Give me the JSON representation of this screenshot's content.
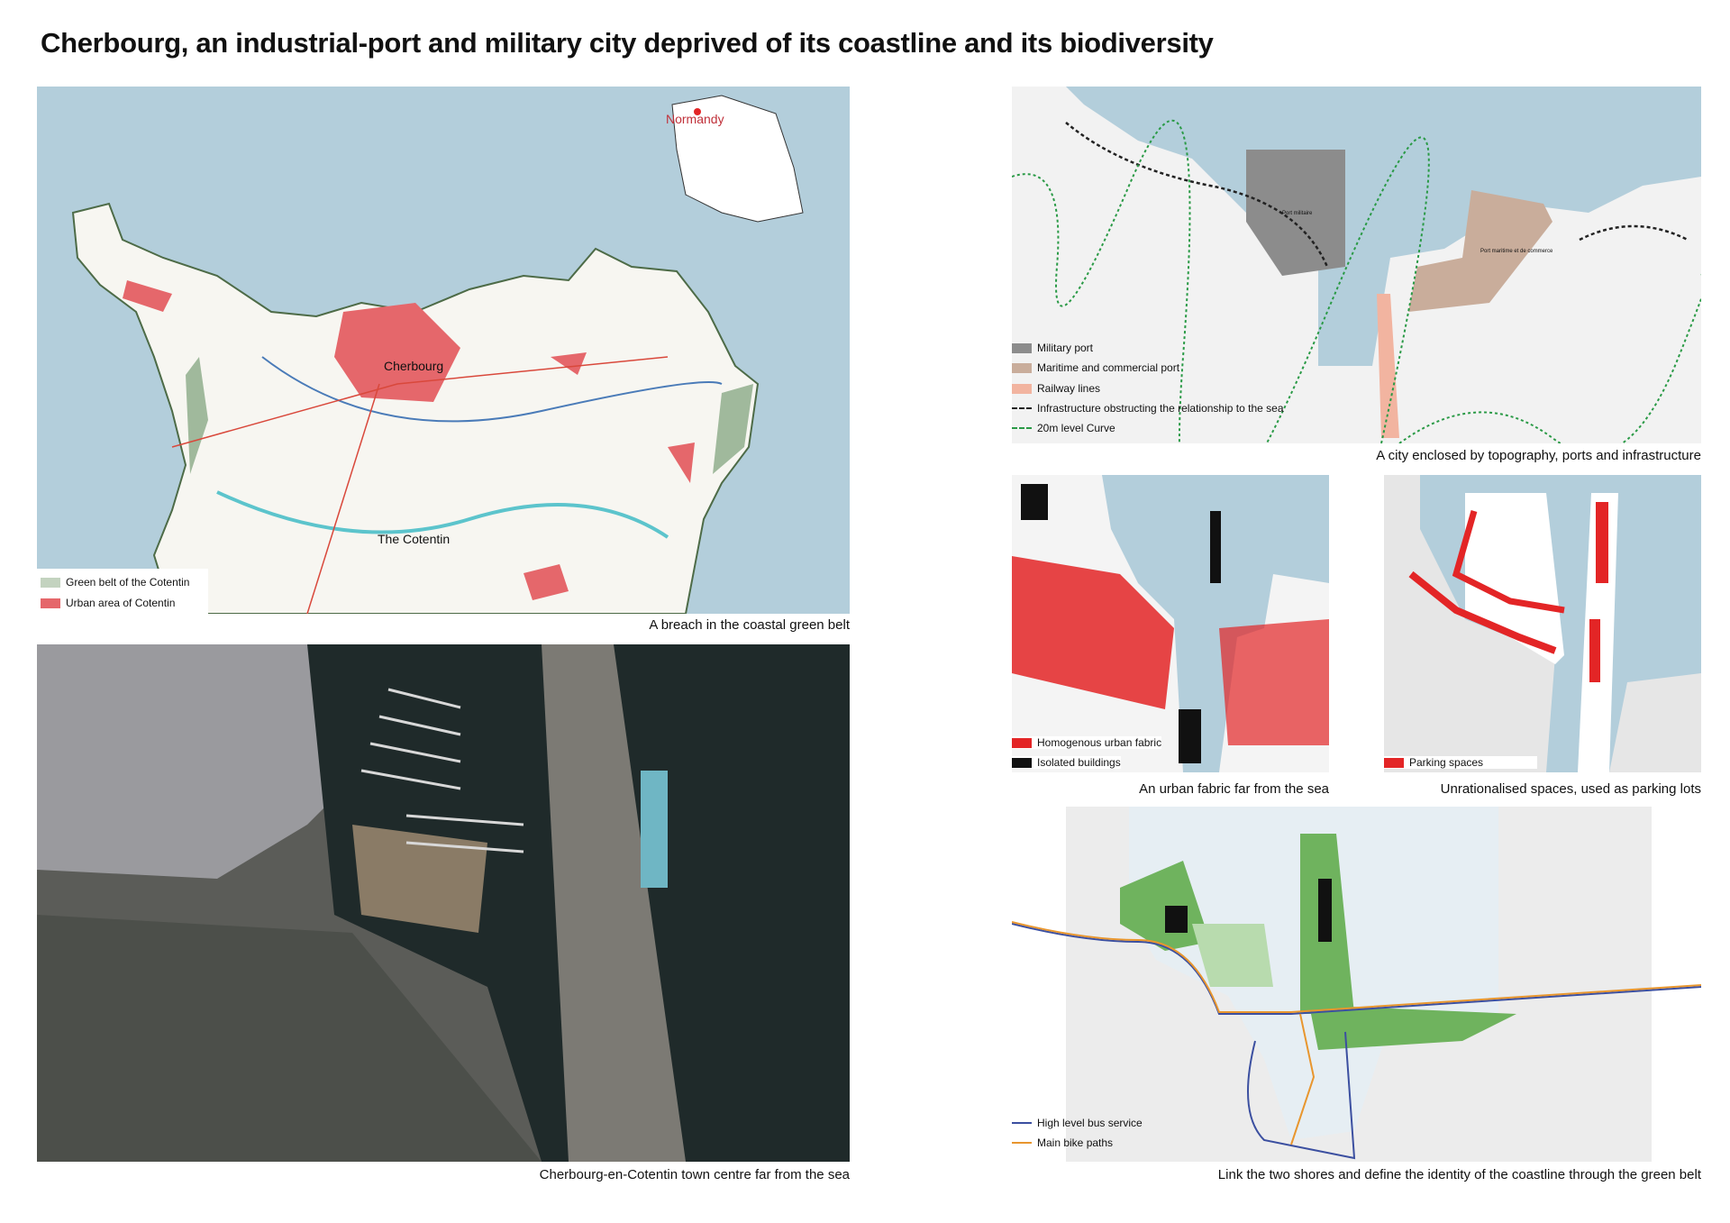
{
  "title": "Cherbourg, an industrial-port and military city deprived of its coastline and its biodiversity",
  "colors": {
    "sea": "#b3cedb",
    "green_belt": "#c3d3bf",
    "urban": "#e5676b",
    "military": "#8c8c8c",
    "maritime": "#c9ad9b",
    "railway": "#f2b4a0",
    "green": "#6fb35e",
    "bus": "#3b4fa0",
    "bike": "#e8962e",
    "red": "#e32526"
  },
  "panel1": {
    "caption": "A breach in the coastal green belt",
    "labels": {
      "normandy": "Normandy",
      "cherbourg": "Cherbourg",
      "cotentin": "The Cotentin"
    },
    "legend": [
      "Green belt of the Cotentin",
      "Urban area of Cotentin"
    ]
  },
  "panel2": {
    "caption": "Cherbourg-en-Cotentin town centre far from the sea"
  },
  "panel3": {
    "caption": "A city enclosed by topography, ports and infrastructure",
    "labels": {
      "military": "Port militaire",
      "maritime": "Port maritime et de commerce"
    },
    "legend": [
      "Military port",
      "Maritime and commercial port",
      "Railway lines",
      "Infrastructure obstructing the relationship to the sea",
      "20m level Curve"
    ]
  },
  "panel4": {
    "caption": "An urban fabric far from the sea",
    "legend": [
      "Homogenous urban fabric",
      "Isolated buildings"
    ]
  },
  "panel5": {
    "caption": "Unrationalised spaces, used as parking lots",
    "legend": [
      "Parking spaces"
    ]
  },
  "panel6": {
    "caption": "Link the two shores and define the identity of the coastline through the green belt",
    "legend": [
      "High level bus service",
      "Main bike paths"
    ]
  }
}
